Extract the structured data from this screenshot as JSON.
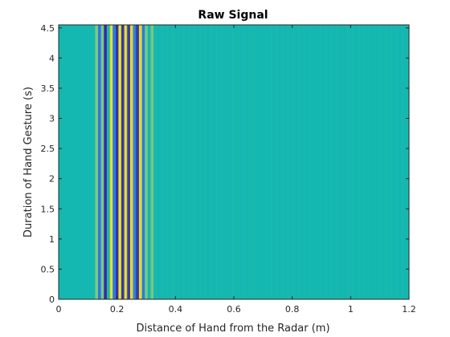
{
  "chart_data": {
    "type": "heatmap",
    "title": "Raw Signal",
    "xlabel": "Distance of Hand from the Radar (m)",
    "ylabel": "Duration of Hand Gesture (s)",
    "xlim": [
      0,
      1.2
    ],
    "ylim": [
      0,
      4.55
    ],
    "xticks": [
      0,
      0.2,
      0.4,
      0.6,
      0.8,
      1,
      1.2
    ],
    "xtick_labels": [
      "0",
      "0.2",
      "0.4",
      "0.6",
      "0.8",
      "1",
      "1.2"
    ],
    "yticks": [
      0,
      0.5,
      1,
      1.5,
      2,
      2.5,
      3,
      3.5,
      4,
      4.5
    ],
    "ytick_labels": [
      "0",
      "0.5",
      "1",
      "1.5",
      "2",
      "2.5",
      "3",
      "3.5",
      "4",
      "4.5"
    ],
    "colormap": "parula",
    "background_color": "#14b8b0",
    "palette": [
      "#3e26a8",
      "#2c74f0",
      "#14b8b0",
      "#7fc97a",
      "#f9e11f"
    ],
    "grid": false,
    "bands": [
      {
        "x": 0.12,
        "value": 2
      },
      {
        "x": 0.13,
        "value": 3
      },
      {
        "x": 0.14,
        "value": 1
      },
      {
        "x": 0.15,
        "value": 3
      },
      {
        "x": 0.16,
        "value": 0
      },
      {
        "x": 0.17,
        "value": 2
      },
      {
        "x": 0.18,
        "value": 4
      },
      {
        "x": 0.19,
        "value": 1
      },
      {
        "x": 0.2,
        "value": 0
      },
      {
        "x": 0.21,
        "value": 4
      },
      {
        "x": 0.22,
        "value": 0
      },
      {
        "x": 0.23,
        "value": 4
      },
      {
        "x": 0.24,
        "value": 0
      },
      {
        "x": 0.25,
        "value": 4
      },
      {
        "x": 0.26,
        "value": 1
      },
      {
        "x": 0.27,
        "value": 0
      },
      {
        "x": 0.28,
        "value": 4
      },
      {
        "x": 0.29,
        "value": 1
      },
      {
        "x": 0.3,
        "value": 3
      },
      {
        "x": 0.31,
        "value": 2
      },
      {
        "x": 0.32,
        "value": 3
      }
    ]
  }
}
